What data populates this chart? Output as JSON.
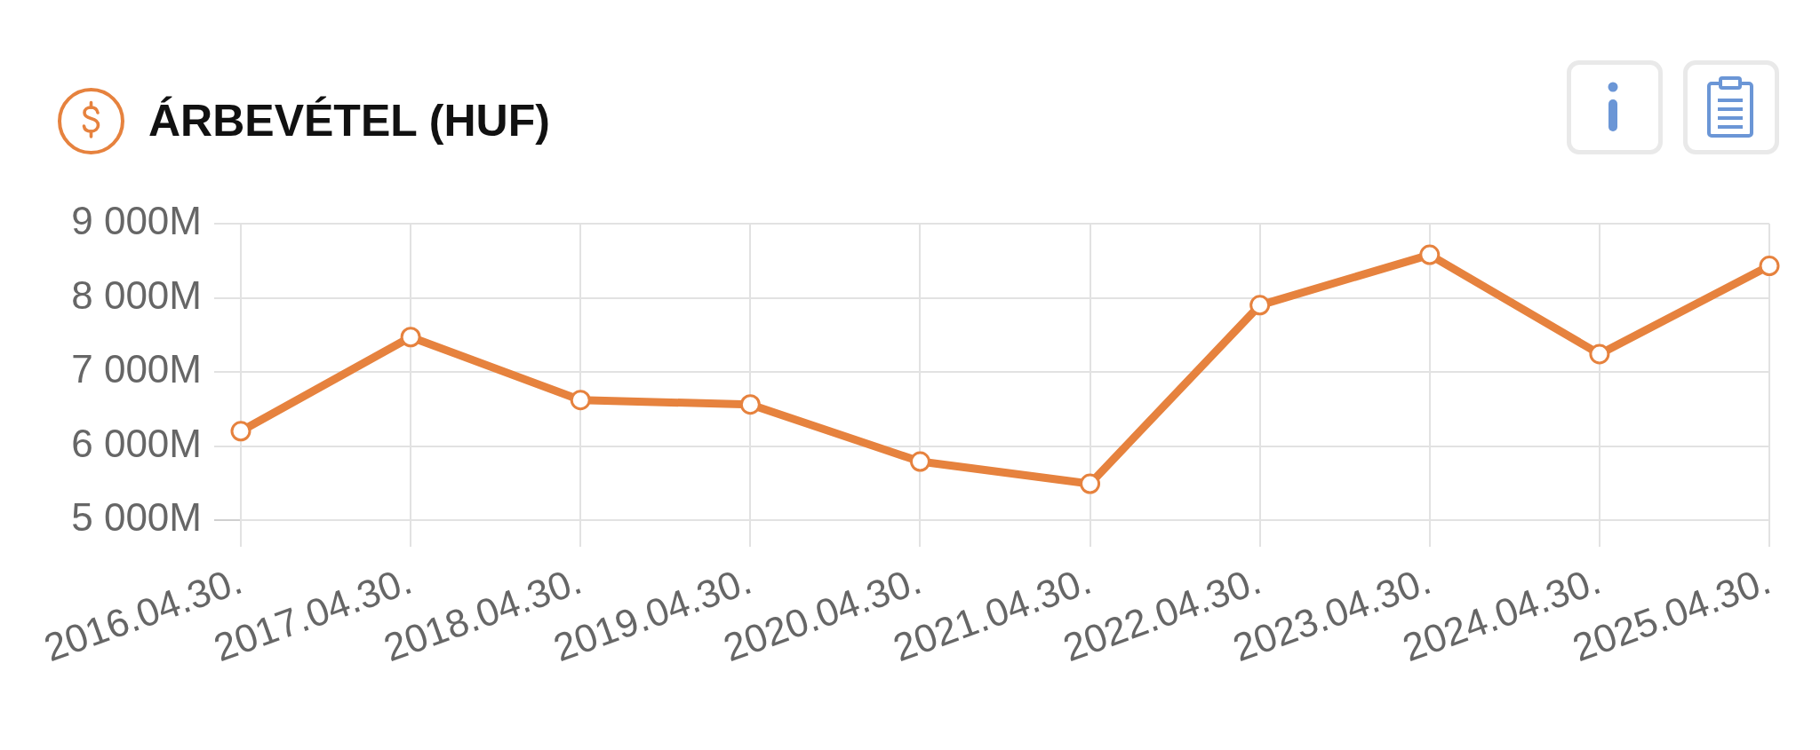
{
  "chart_data": {
    "type": "line",
    "title": "ÁRBEVÉTEL (HUF)",
    "categories": [
      "2016.04.30.",
      "2017.04.30.",
      "2018.04.30.",
      "2019.04.30.",
      "2020.04.30.",
      "2021.04.30.",
      "2022.04.30.",
      "2023.04.30.",
      "2024.04.30.",
      "2025.04.30."
    ],
    "values": [
      6200,
      7470,
      6620,
      6560,
      5790,
      5490,
      7900,
      8580,
      7240,
      8430
    ],
    "color": "#e6823e",
    "ylim": [
      5000,
      9000
    ],
    "yticks": [
      {
        "value": 5000,
        "label": "5 000M"
      },
      {
        "value": 6000,
        "label": "6 000M"
      },
      {
        "value": 7000,
        "label": "7 000M"
      },
      {
        "value": 8000,
        "label": "8 000M"
      },
      {
        "value": 9000,
        "label": "9 000M"
      }
    ],
    "grid": true,
    "marker": "circle",
    "line_style": "solid"
  }
}
